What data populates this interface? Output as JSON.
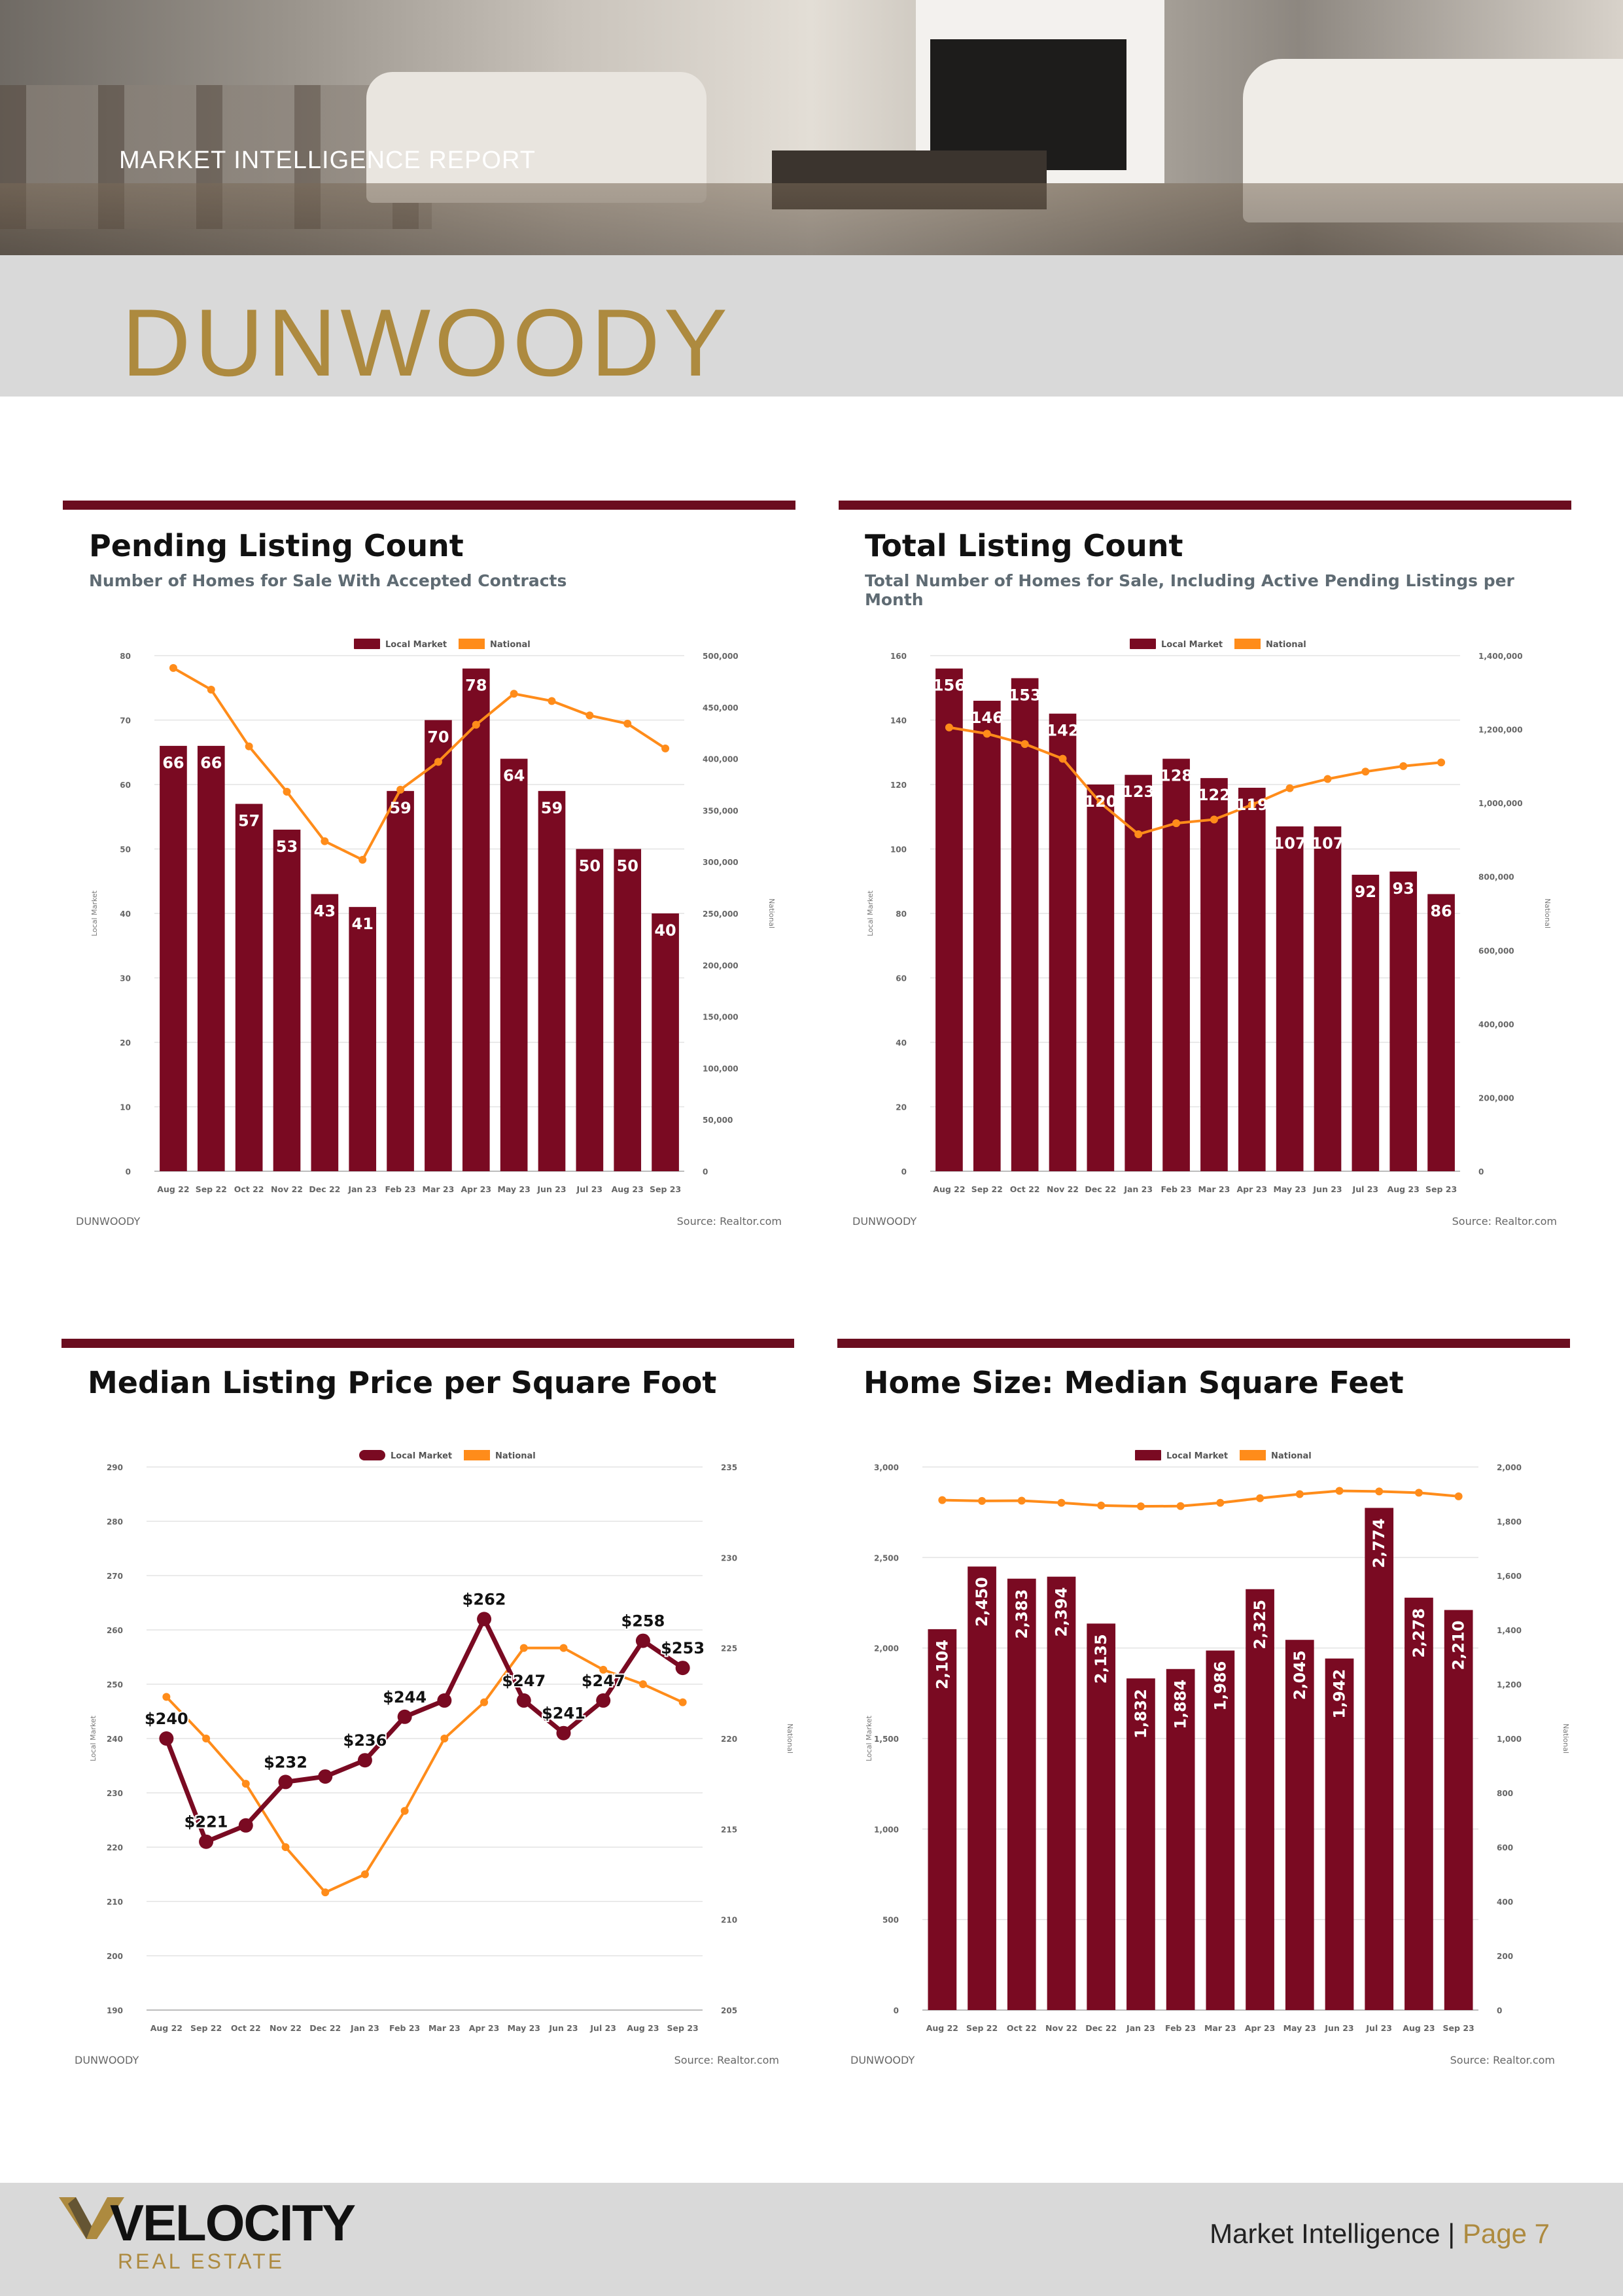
{
  "header": {
    "report_label": "MARKET INTELLIGENCE REPORT",
    "city": "DUNWOODY"
  },
  "colors": {
    "local": "#7a0a22",
    "national": "#ff8c1a",
    "accent_bar": "#6b0d1f",
    "gold": "#ad8a3f"
  },
  "legend": {
    "local": "Local Market",
    "national": "National"
  },
  "axis_titles": {
    "left": "Local Market",
    "right": "National"
  },
  "footer": {
    "logo_word": "VELOCITY",
    "logo_sub": "REAL ESTATE",
    "page_prefix": "Market Intelligence | ",
    "page_label": "Page 7"
  },
  "chart_data": [
    {
      "id": "pending",
      "type": "bar",
      "title": "Pending Listing Count",
      "subtitle": "Number of Homes for Sale With Accepted Contracts",
      "footer_left": "DUNWOODY",
      "footer_right": "Source: Realtor.com",
      "categories": [
        "Aug 22",
        "Sep 22",
        "Oct 22",
        "Nov 22",
        "Dec 22",
        "Jan 23",
        "Feb 23",
        "Mar 23",
        "Apr 23",
        "May 23",
        "Jun 23",
        "Jul 23",
        "Aug 23",
        "Sep 23"
      ],
      "series": [
        {
          "name": "Local Market",
          "axis": "left",
          "kind": "bar",
          "values": [
            66,
            66,
            57,
            53,
            43,
            41,
            59,
            70,
            78,
            64,
            59,
            50,
            50,
            40
          ],
          "labels": [
            "66",
            "66",
            "57",
            "53",
            "43",
            "41",
            "59",
            "70",
            "78",
            "64",
            "59",
            "50",
            "50",
            "40"
          ]
        },
        {
          "name": "National",
          "axis": "right",
          "kind": "line",
          "values": [
            488000,
            467000,
            412000,
            368000,
            320000,
            302000,
            370000,
            397000,
            433000,
            463000,
            456000,
            442000,
            434000,
            410000
          ]
        }
      ],
      "left_axis": {
        "min": 0,
        "max": 80,
        "ticks": [
          "0",
          "10",
          "20",
          "30",
          "40",
          "50",
          "60",
          "70",
          "80"
        ]
      },
      "right_axis": {
        "min": 0,
        "max": 500000,
        "ticks": [
          "0",
          "50,000",
          "100,000",
          "150,000",
          "200,000",
          "250,000",
          "300,000",
          "350,000",
          "400,000",
          "450,000",
          "500,000"
        ]
      },
      "label_style": "inside"
    },
    {
      "id": "total",
      "type": "bar",
      "title": "Total Listing Count",
      "subtitle": "Total Number of Homes for Sale, Including Active Pending Listings per Month",
      "footer_left": "DUNWOODY",
      "footer_right": "Source: Realtor.com",
      "categories": [
        "Aug 22",
        "Sep 22",
        "Oct 22",
        "Nov 22",
        "Dec 22",
        "Jan 23",
        "Feb 23",
        "Mar 23",
        "Apr 23",
        "May 23",
        "Jun 23",
        "Jul 23",
        "Aug 23",
        "Sep 23"
      ],
      "series": [
        {
          "name": "Local Market",
          "axis": "left",
          "kind": "bar",
          "values": [
            156,
            146,
            153,
            142,
            120,
            123,
            128,
            122,
            119,
            107,
            107,
            92,
            93,
            86
          ],
          "labels": [
            "156",
            "146",
            "153",
            "142",
            "120",
            "123",
            "128",
            "122",
            "119",
            "107",
            "107",
            "92",
            "93",
            "86"
          ]
        },
        {
          "name": "National",
          "axis": "right",
          "kind": "line",
          "values": [
            1205000,
            1188000,
            1160000,
            1120000,
            1000000,
            915000,
            945000,
            955000,
            995000,
            1040000,
            1065000,
            1085000,
            1100000,
            1110000
          ]
        }
      ],
      "left_axis": {
        "min": 0,
        "max": 160,
        "ticks": [
          "0",
          "20",
          "40",
          "60",
          "80",
          "100",
          "120",
          "140",
          "160"
        ]
      },
      "right_axis": {
        "min": 0,
        "max": 1400000,
        "ticks": [
          "0",
          "200,000",
          "400,000",
          "600,000",
          "800,000",
          "1,000,000",
          "1,200,000",
          "1,400,000"
        ]
      },
      "label_style": "inside"
    },
    {
      "id": "ppsf",
      "type": "line",
      "title": "Median Listing Price per Square Foot",
      "subtitle": "",
      "footer_left": "DUNWOODY",
      "footer_right": "Source: Realtor.com",
      "categories": [
        "Aug 22",
        "Sep 22",
        "Oct 22",
        "Nov 22",
        "Dec 22",
        "Jan 23",
        "Feb 23",
        "Mar 23",
        "Apr 23",
        "May 23",
        "Jun 23",
        "Jul 23",
        "Aug 23",
        "Sep 23"
      ],
      "series": [
        {
          "name": "Local Market",
          "axis": "left",
          "kind": "line",
          "values": [
            240,
            221,
            224,
            232,
            233,
            236,
            244,
            247,
            262,
            247,
            241,
            247,
            258,
            253
          ],
          "labels": [
            "$240",
            "$221",
            "",
            "$232",
            "",
            "$236",
            "$244",
            "",
            "$262",
            "$247",
            "$241",
            "$247",
            "$258",
            "$253"
          ]
        },
        {
          "name": "National",
          "axis": "right",
          "kind": "line",
          "values": [
            222.3,
            220,
            217.5,
            214,
            211.5,
            212.5,
            216,
            220,
            222,
            225,
            225,
            223.8,
            223,
            222
          ]
        }
      ],
      "left_axis": {
        "min": 190,
        "max": 290,
        "ticks": [
          "190",
          "200",
          "210",
          "220",
          "230",
          "240",
          "250",
          "260",
          "270",
          "280",
          "290"
        ]
      },
      "right_axis": {
        "min": 205,
        "max": 235,
        "ticks": [
          "205",
          "210",
          "215",
          "220",
          "225",
          "230",
          "235"
        ]
      },
      "label_style": "above"
    },
    {
      "id": "homesize",
      "type": "bar",
      "title": "Home Size: Median Square Feet",
      "subtitle": "",
      "footer_left": "DUNWOODY",
      "footer_right": "Source: Realtor.com",
      "categories": [
        "Aug 22",
        "Sep 22",
        "Oct 22",
        "Nov 22",
        "Dec 22",
        "Jan 23",
        "Feb 23",
        "Mar 23",
        "Apr 23",
        "May 23",
        "Jun 23",
        "Jul 23",
        "Aug 23",
        "Sep 23"
      ],
      "series": [
        {
          "name": "Local Market",
          "axis": "left",
          "kind": "bar",
          "values": [
            2104,
            2450,
            2383,
            2394,
            2135,
            1832,
            1884,
            1986,
            2325,
            2045,
            1942,
            2774,
            2278,
            2210
          ],
          "labels": [
            "2,104",
            "2,450",
            "2,383",
            "2,394",
            "2,135",
            "1,832",
            "1,884",
            "1,986",
            "2,325",
            "2,045",
            "1,942",
            "2,774",
            "2,278",
            "2,210"
          ]
        },
        {
          "name": "National",
          "axis": "right",
          "kind": "line",
          "values": [
            1878,
            1875,
            1876,
            1868,
            1858,
            1855,
            1856,
            1868,
            1885,
            1900,
            1912,
            1910,
            1905,
            1892
          ]
        }
      ],
      "left_axis": {
        "min": 0,
        "max": 3000,
        "ticks": [
          "0",
          "500",
          "1,000",
          "1,500",
          "2,000",
          "2,500",
          "3,000"
        ]
      },
      "right_axis": {
        "min": 0,
        "max": 2000,
        "ticks": [
          "0",
          "200",
          "400",
          "600",
          "800",
          "1,000",
          "1,200",
          "1,400",
          "1,600",
          "1,800",
          "2,000"
        ]
      },
      "label_style": "vertical"
    }
  ]
}
